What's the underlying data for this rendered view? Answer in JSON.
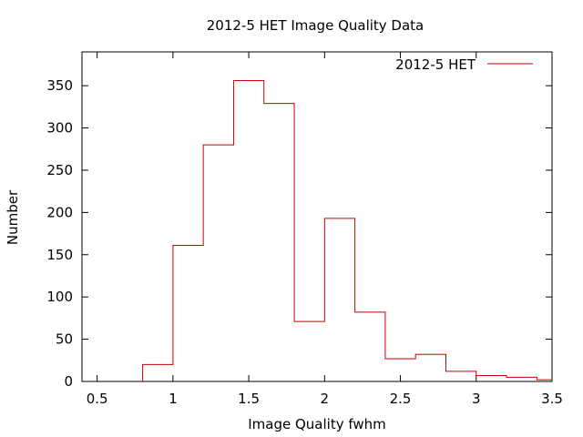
{
  "chart_data": {
    "type": "histogram",
    "title": "2012-5 HET Image Quality Data",
    "xlabel": "Image Quality fwhm",
    "ylabel": "Number",
    "xlim": [
      0.4,
      3.5
    ],
    "ylim": [
      0,
      390
    ],
    "xticks": [
      "0.5",
      "1",
      "1.5",
      "2",
      "2.5",
      "3",
      "3.5"
    ],
    "xtick_values": [
      0.5,
      1,
      1.5,
      2,
      2.5,
      3,
      3.5
    ],
    "yticks": [
      "0",
      "50",
      "100",
      "150",
      "200",
      "250",
      "300",
      "350"
    ],
    "ytick_values": [
      0,
      50,
      100,
      150,
      200,
      250,
      300,
      350
    ],
    "grid": false,
    "legend_position": "top-right",
    "series": [
      {
        "name": "2012-5 HET",
        "color": "#cc0000",
        "bin_width": 0.2,
        "bin_starts": [
          0.8,
          1.0,
          1.2,
          1.4,
          1.6,
          1.8,
          2.0,
          2.2,
          2.4,
          2.6,
          2.8,
          3.0,
          3.2,
          3.4
        ],
        "values": [
          20,
          161,
          280,
          356,
          329,
          71,
          193,
          82,
          27,
          32,
          12,
          7,
          5,
          2
        ]
      }
    ]
  }
}
